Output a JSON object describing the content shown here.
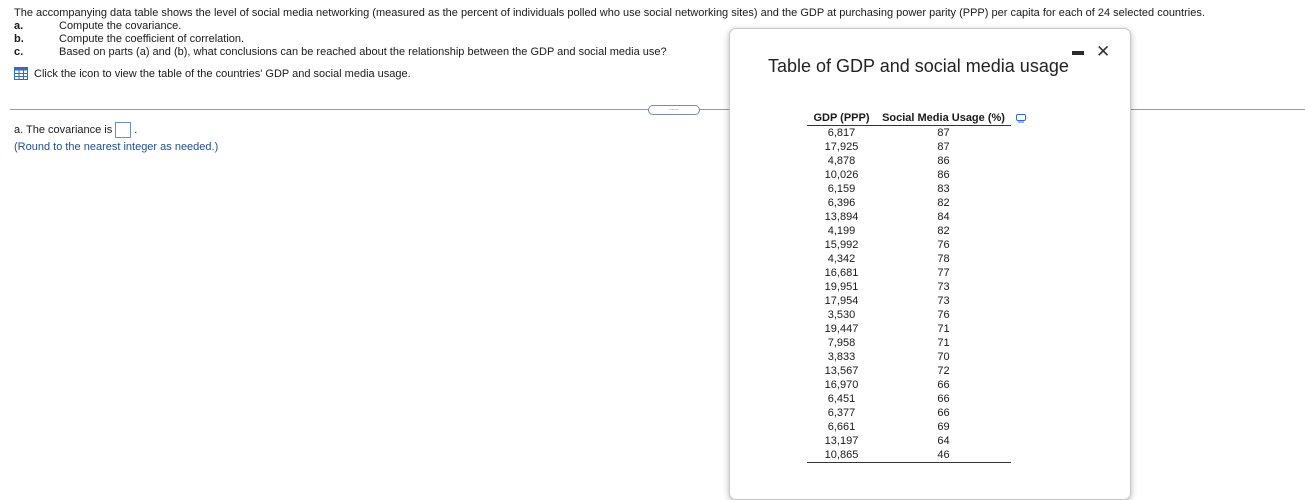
{
  "intro": {
    "statement": "The accompanying data table shows the level of social media networking (measured as the percent of individuals polled who use social networking sites) and the GDP at purchasing power parity (PPP) per capita for each of 24 selected countries.",
    "parts": [
      {
        "letter": "a.",
        "text": "Compute the covariance."
      },
      {
        "letter": "b.",
        "text": "Compute the coefficient of correlation."
      },
      {
        "letter": "c.",
        "text": "Based on parts (a) and (b), what conclusions can be reached about the relationship between the GDP and social media use?"
      }
    ],
    "data_link": "Click the icon to view the table of the countries' GDP and social media usage."
  },
  "expander_label": ".....",
  "answer": {
    "prompt": "a. The covariance is",
    "suffix": ".",
    "value": "",
    "hint": "(Round to the nearest integer as needed.)"
  },
  "dialog": {
    "title": "Table of GDP and social media usage",
    "close_glyph": "✕",
    "columns": [
      "GDP (PPP)",
      "Social Media Usage (%)"
    ],
    "rows": [
      [
        "6,817",
        "87"
      ],
      [
        "17,925",
        "87"
      ],
      [
        "4,878",
        "86"
      ],
      [
        "10,026",
        "86"
      ],
      [
        "6,159",
        "83"
      ],
      [
        "6,396",
        "82"
      ],
      [
        "13,894",
        "84"
      ],
      [
        "4,199",
        "82"
      ],
      [
        "15,992",
        "76"
      ],
      [
        "4,342",
        "78"
      ],
      [
        "16,681",
        "77"
      ],
      [
        "19,951",
        "73"
      ],
      [
        "17,954",
        "73"
      ],
      [
        "3,530",
        "76"
      ],
      [
        "19,447",
        "71"
      ],
      [
        "7,958",
        "71"
      ],
      [
        "3,833",
        "70"
      ],
      [
        "13,567",
        "72"
      ],
      [
        "16,970",
        "66"
      ],
      [
        "6,451",
        "66"
      ],
      [
        "6,377",
        "66"
      ],
      [
        "6,661",
        "69"
      ],
      [
        "13,197",
        "64"
      ],
      [
        "10,865",
        "46"
      ]
    ]
  },
  "icons": {
    "table": "grid-table-icon",
    "copy": "copy-icon",
    "close": "close-icon",
    "minimize": "minimize-icon"
  },
  "colors": {
    "link": "#1f4e92",
    "icon_blue": "#2f6ec2",
    "box_border": "#6b8fb8"
  }
}
